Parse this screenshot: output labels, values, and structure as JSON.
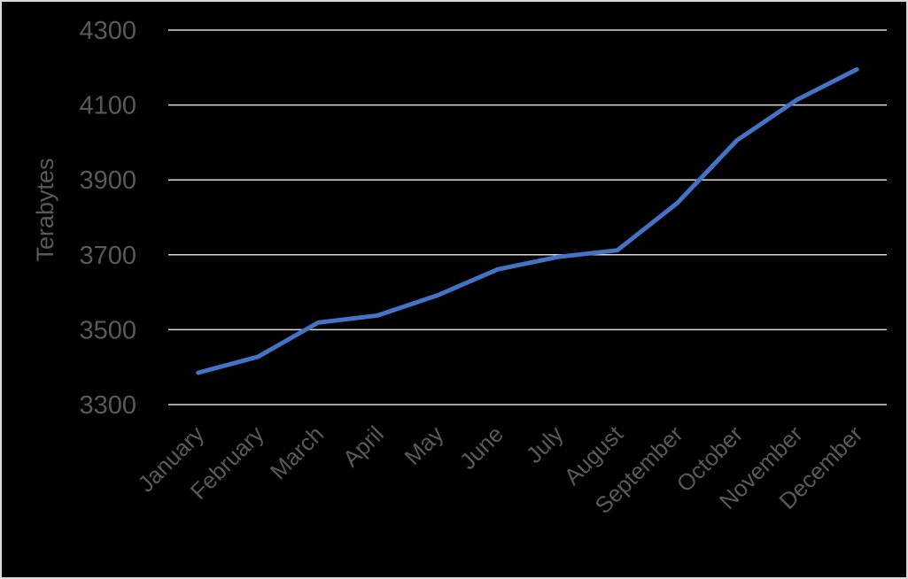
{
  "chart_data": {
    "type": "line",
    "title": "",
    "xlabel": "",
    "ylabel": "Terabytes",
    "ylim": [
      3300,
      4300
    ],
    "yticks": [
      3300,
      3500,
      3700,
      3900,
      4100,
      4300
    ],
    "grid": true,
    "legend": null,
    "categories": [
      "January",
      "February",
      "March",
      "April",
      "May",
      "June",
      "July",
      "August",
      "September",
      "October",
      "November",
      "December"
    ],
    "series": [
      {
        "name": "Terabytes",
        "color": "#4472c4",
        "values": [
          3385,
          3428,
          3519,
          3538,
          3592,
          3661,
          3694,
          3712,
          3838,
          4006,
          4114,
          4195
        ]
      }
    ]
  },
  "colors": {
    "background": "#000000",
    "gridline": "#d9d9d9",
    "text": "#595959",
    "border": "#d9d9d9"
  }
}
